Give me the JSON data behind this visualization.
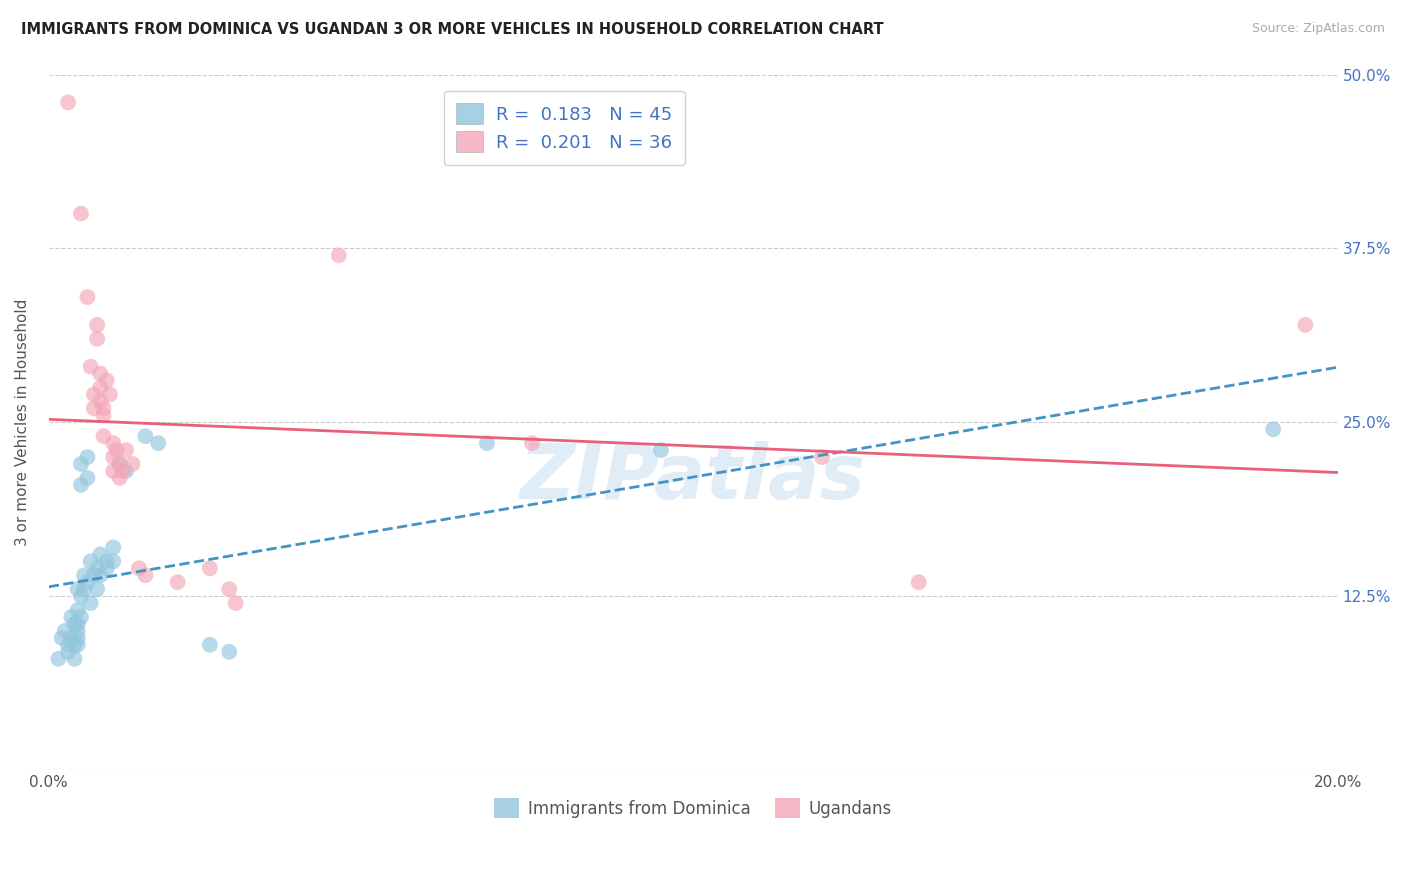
{
  "title": "IMMIGRANTS FROM DOMINICA VS UGANDAN 3 OR MORE VEHICLES IN HOUSEHOLD CORRELATION CHART",
  "source": "Source: ZipAtlas.com",
  "ylabel": "3 or more Vehicles in Household",
  "legend_blue_r": "0.183",
  "legend_blue_n": "45",
  "legend_pink_r": "0.201",
  "legend_pink_n": "36",
  "legend_label_blue": "Immigrants from Dominica",
  "legend_label_pink": "Ugandans",
  "watermark": "ZIPatlas",
  "blue_color": "#92c5de",
  "pink_color": "#f4a6b8",
  "blue_line_color": "#4393c3",
  "pink_line_color": "#e8607a",
  "blue_scatter": [
    [
      0.15,
      8.0
    ],
    [
      0.2,
      9.5
    ],
    [
      0.25,
      10.0
    ],
    [
      0.3,
      8.5
    ],
    [
      0.3,
      9.0
    ],
    [
      0.35,
      11.0
    ],
    [
      0.35,
      9.5
    ],
    [
      0.4,
      10.5
    ],
    [
      0.4,
      9.0
    ],
    [
      0.4,
      8.0
    ],
    [
      0.45,
      13.0
    ],
    [
      0.45,
      11.5
    ],
    [
      0.45,
      10.5
    ],
    [
      0.45,
      10.0
    ],
    [
      0.45,
      9.5
    ],
    [
      0.45,
      9.0
    ],
    [
      0.5,
      22.0
    ],
    [
      0.5,
      20.5
    ],
    [
      0.5,
      12.5
    ],
    [
      0.5,
      11.0
    ],
    [
      0.55,
      14.0
    ],
    [
      0.55,
      13.0
    ],
    [
      0.6,
      22.5
    ],
    [
      0.6,
      21.0
    ],
    [
      0.6,
      13.5
    ],
    [
      0.65,
      15.0
    ],
    [
      0.65,
      12.0
    ],
    [
      0.7,
      14.0
    ],
    [
      0.75,
      14.5
    ],
    [
      0.75,
      13.0
    ],
    [
      0.8,
      15.5
    ],
    [
      0.8,
      14.0
    ],
    [
      0.9,
      15.0
    ],
    [
      0.9,
      14.5
    ],
    [
      1.0,
      16.0
    ],
    [
      1.0,
      15.0
    ],
    [
      1.1,
      22.0
    ],
    [
      1.2,
      21.5
    ],
    [
      1.5,
      24.0
    ],
    [
      1.7,
      23.5
    ],
    [
      2.5,
      9.0
    ],
    [
      2.8,
      8.5
    ],
    [
      6.8,
      23.5
    ],
    [
      9.5,
      23.0
    ],
    [
      19.0,
      24.5
    ]
  ],
  "pink_scatter": [
    [
      0.3,
      48.0
    ],
    [
      0.5,
      40.0
    ],
    [
      0.6,
      34.0
    ],
    [
      0.65,
      29.0
    ],
    [
      0.7,
      27.0
    ],
    [
      0.7,
      26.0
    ],
    [
      0.75,
      32.0
    ],
    [
      0.75,
      31.0
    ],
    [
      0.8,
      28.5
    ],
    [
      0.8,
      27.5
    ],
    [
      0.8,
      26.5
    ],
    [
      0.85,
      26.0
    ],
    [
      0.85,
      25.5
    ],
    [
      0.85,
      24.0
    ],
    [
      0.9,
      28.0
    ],
    [
      0.95,
      27.0
    ],
    [
      1.0,
      23.5
    ],
    [
      1.0,
      22.5
    ],
    [
      1.0,
      21.5
    ],
    [
      1.05,
      23.0
    ],
    [
      1.1,
      22.0
    ],
    [
      1.1,
      21.0
    ],
    [
      1.15,
      21.5
    ],
    [
      1.2,
      23.0
    ],
    [
      1.3,
      22.0
    ],
    [
      1.4,
      14.5
    ],
    [
      1.5,
      14.0
    ],
    [
      2.0,
      13.5
    ],
    [
      2.5,
      14.5
    ],
    [
      2.8,
      13.0
    ],
    [
      2.9,
      12.0
    ],
    [
      4.5,
      37.0
    ],
    [
      7.5,
      23.5
    ],
    [
      12.0,
      22.5
    ],
    [
      13.5,
      13.5
    ],
    [
      19.5,
      32.0
    ]
  ],
  "xlim": [
    0.0,
    20.0
  ],
  "ylim": [
    0.0,
    50.0
  ],
  "figsize": [
    14.06,
    8.92
  ],
  "dpi": 100
}
